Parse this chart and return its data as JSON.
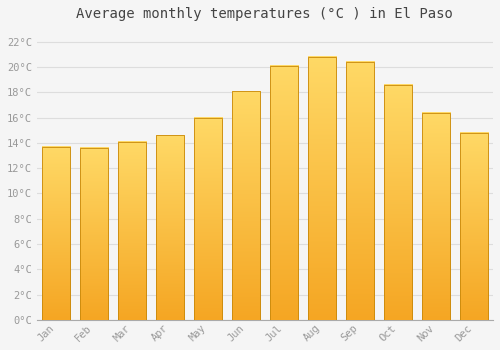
{
  "title": "Average monthly temperatures (°C ) in El Paso",
  "months": [
    "Jan",
    "Feb",
    "Mar",
    "Apr",
    "May",
    "Jun",
    "Jul",
    "Aug",
    "Sep",
    "Oct",
    "Nov",
    "Dec"
  ],
  "values": [
    13.7,
    13.6,
    14.1,
    14.6,
    16.0,
    18.1,
    20.1,
    20.8,
    20.4,
    18.6,
    16.4,
    14.8
  ],
  "bar_color_top": "#FFD966",
  "bar_color_bottom": "#F5A623",
  "bar_edge_color": "#C8880A",
  "background_color": "#F5F5F5",
  "grid_color": "#DDDDDD",
  "text_color": "#999999",
  "ytick_labels": [
    "0°C",
    "2°C",
    "4°C",
    "6°C",
    "8°C",
    "10°C",
    "12°C",
    "14°C",
    "16°C",
    "18°C",
    "20°C",
    "22°C"
  ],
  "ytick_values": [
    0,
    2,
    4,
    6,
    8,
    10,
    12,
    14,
    16,
    18,
    20,
    22
  ],
  "ylim": [
    0,
    23
  ],
  "title_fontsize": 10,
  "tick_fontsize": 7.5,
  "bar_width": 0.75
}
